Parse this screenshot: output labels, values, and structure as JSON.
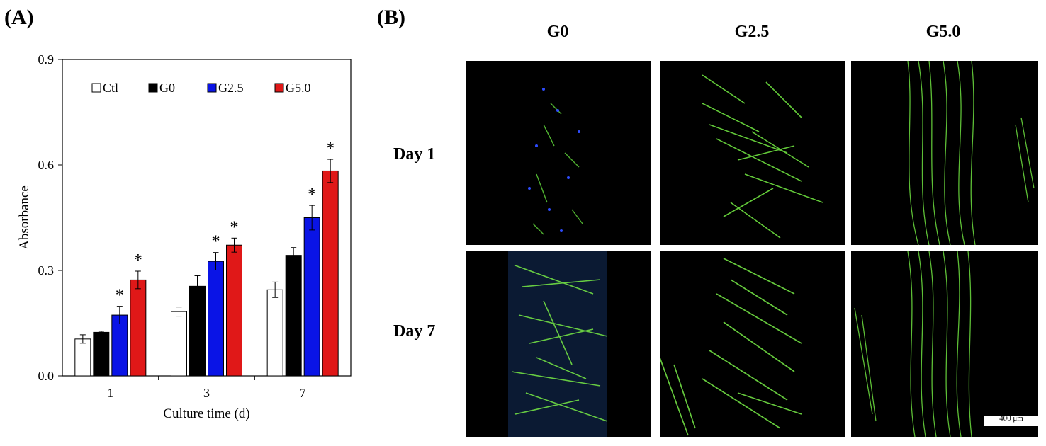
{
  "panel_a_label": "(A)",
  "panel_b_label": "(B)",
  "chart_data": {
    "type": "bar",
    "categories": [
      "1",
      "3",
      "7"
    ],
    "xlabel": "Culture time (d)",
    "ylabel": "Absorbance",
    "ylim": [
      0,
      0.9
    ],
    "yticks": [
      "0.0",
      "0.3",
      "0.6",
      "0.9"
    ],
    "legend_position": "top-inside",
    "series": [
      {
        "name": "Ctl",
        "color": "#ffffff",
        "values": [
          0.105,
          0.183,
          0.245
        ],
        "errors": [
          0.012,
          0.013,
          0.022
        ],
        "significant": [
          false,
          false,
          false
        ]
      },
      {
        "name": "G0",
        "color": "#000000",
        "values": [
          0.124,
          0.255,
          0.343
        ],
        "errors": [
          0.003,
          0.03,
          0.022
        ],
        "significant": [
          false,
          false,
          false
        ]
      },
      {
        "name": "G2.5",
        "color": "#0a14e6",
        "values": [
          0.173,
          0.326,
          0.45
        ],
        "errors": [
          0.025,
          0.025,
          0.035
        ],
        "significant": [
          true,
          true,
          true
        ]
      },
      {
        "name": "G5.0",
        "color": "#e01818",
        "values": [
          0.273,
          0.372,
          0.583
        ],
        "errors": [
          0.025,
          0.02,
          0.033
        ],
        "significant": [
          true,
          true,
          true
        ]
      }
    ],
    "significance_marker": "*"
  },
  "panel_b": {
    "columns": [
      "G0",
      "G2.5",
      "G5.0"
    ],
    "rows": [
      "Day 1",
      "Day 7"
    ],
    "scale_bar": "400 μm"
  }
}
